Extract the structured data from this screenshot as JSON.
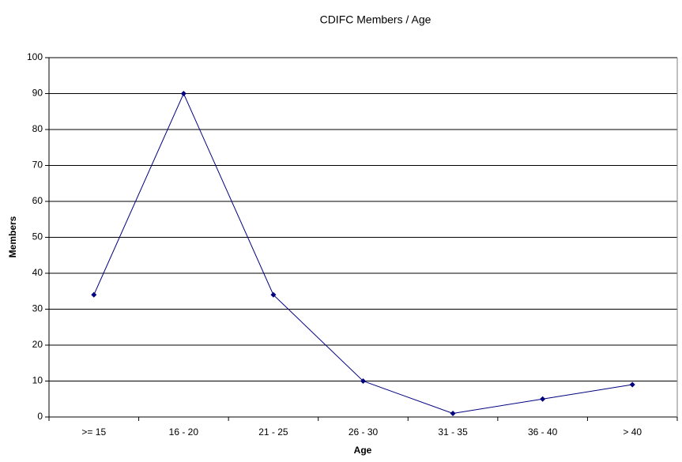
{
  "chart_data": {
    "type": "line",
    "title": "CDIFC Members / Age",
    "x_label": "Age",
    "y_label": "Members",
    "categories": [
      ">= 15",
      "16 - 20",
      "21 - 25",
      "26 - 30",
      "31 - 35",
      "36 - 40",
      "> 40"
    ],
    "values": [
      34,
      90,
      34,
      10,
      1,
      5,
      9
    ],
    "color": "#000080",
    "ylim": [
      0,
      100
    ],
    "yticks": [
      0,
      10,
      20,
      30,
      40,
      50,
      60,
      70,
      80,
      90,
      100
    ],
    "grid": true
  }
}
